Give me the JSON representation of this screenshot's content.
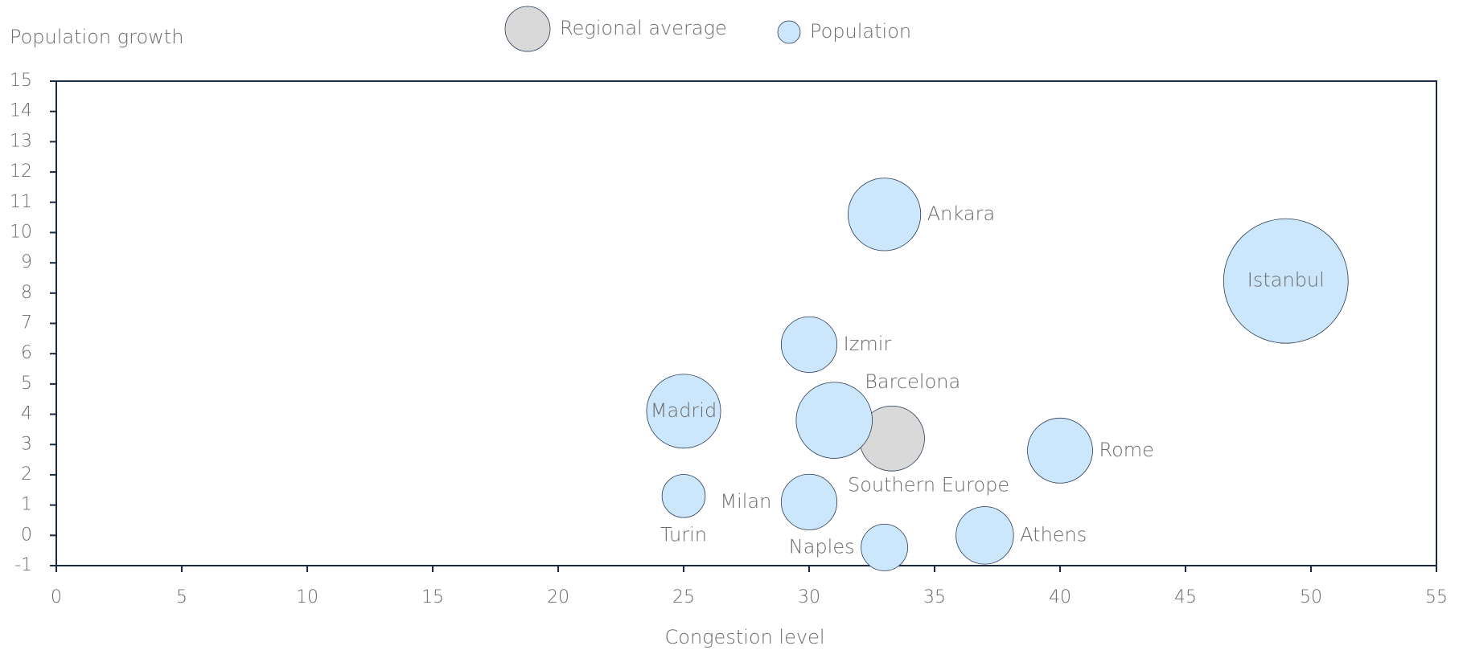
{
  "chart_data": {
    "type": "bubble",
    "x_label": "Congestion level",
    "y_label": "Population growth",
    "xlim": [
      0,
      55
    ],
    "xticks": [
      0,
      5,
      10,
      15,
      20,
      25,
      30,
      35,
      40,
      45,
      50,
      55
    ],
    "ylim": [
      -1,
      15
    ],
    "yticks": [
      -1,
      0,
      1,
      2,
      3,
      4,
      5,
      6,
      7,
      8,
      9,
      10,
      11,
      12,
      13,
      14,
      15
    ],
    "legend": "top",
    "series": [
      {
        "name": "Regional average",
        "color": "#d9d9d9",
        "labels": [
          "Southern Europe"
        ],
        "x": [
          33.3
        ],
        "values": [
          3.2
        ],
        "sizes": [
          4.1
        ]
      },
      {
        "name": "Population",
        "color": "#cce6fb",
        "labels": [
          "Ankara",
          "Istanbul",
          "Izmir",
          "Madrid",
          "Barcelona",
          "Rome",
          "Turin",
          "Milan",
          "Naples",
          "Athens"
        ],
        "x": [
          33,
          49,
          30,
          25,
          31,
          40,
          25,
          30,
          33,
          37
        ],
        "values": [
          10.6,
          8.4,
          6.3,
          4.1,
          3.8,
          2.8,
          1.3,
          1.1,
          -0.4,
          0.0
        ],
        "sizes": [
          5.1,
          15,
          3.0,
          5.3,
          5.6,
          4.1,
          1.8,
          3.0,
          2.1,
          3.2
        ]
      }
    ]
  }
}
